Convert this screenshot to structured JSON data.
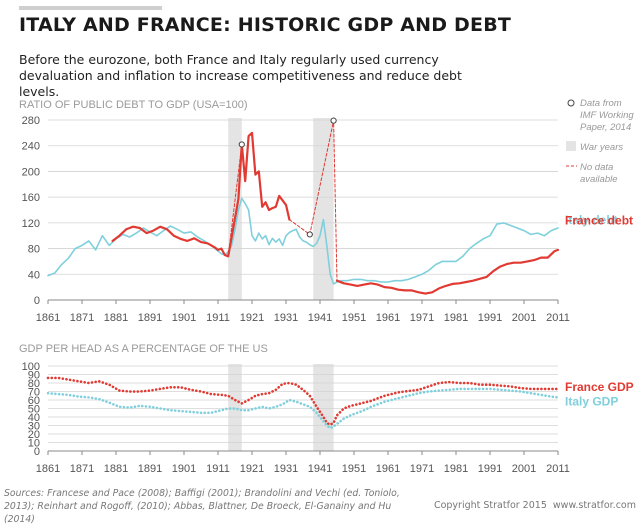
{
  "header": {
    "title": "ITALY AND FRANCE: HISTORIC GDP AND DEBT",
    "subtitle": "Before the eurozone, both France and Italy regularly used currency devaluation and inflation to increase competitiveness and reduce debt levels."
  },
  "footer": {
    "sources": "Sources: Francese and Pace (2008); Baffigi (2001); Brandolini and Vechi (ed. Toniolo, 2013); Reinhart and Rogoff, (2010); Abbas, Blattner, De Broeck, El-Ganainy and Hu (2014)",
    "copyright": "Copyright Stratfor 2015",
    "website": "www.stratfor.com"
  },
  "colors": {
    "france": "#e03a33",
    "italy": "#7fd0dc",
    "war": "#e4e4e4",
    "grid": "#d3d3d3",
    "axis": "#8a8a8a"
  },
  "chart_data": [
    {
      "type": "line",
      "title": "RATIO OF PUBLIC DEBT TO GDP (USA=100)",
      "xlim": [
        1861,
        2011
      ],
      "ylim": [
        0,
        280
      ],
      "x_ticks": [
        1861,
        1871,
        1881,
        1891,
        1901,
        1911,
        1921,
        1931,
        1941,
        1951,
        1961,
        1971,
        1981,
        1991,
        2001,
        2011
      ],
      "y_ticks": [
        0,
        40,
        80,
        120,
        160,
        200,
        240,
        280
      ],
      "grid": true,
      "war_years": [
        [
          1914,
          1918
        ],
        [
          1939,
          1945
        ]
      ],
      "legend": {
        "imf_marker": "Data from IMF Working Paper, 2014",
        "war": "War years",
        "no_data": "No data available"
      },
      "series": [
        {
          "name": "Italy debt",
          "x": [
            1861,
            1863,
            1865,
            1867,
            1869,
            1871,
            1873,
            1875,
            1877,
            1879,
            1881,
            1883,
            1885,
            1887,
            1889,
            1891,
            1893,
            1895,
            1897,
            1899,
            1901,
            1903,
            1905,
            1907,
            1909,
            1911,
            1912,
            1913,
            1914,
            1915,
            1916,
            1917,
            1918,
            1919,
            1920,
            1921,
            1922,
            1923,
            1924,
            1925,
            1926,
            1927,
            1928,
            1929,
            1930,
            1931,
            1932,
            1933,
            1934,
            1935,
            1936,
            1937,
            1938,
            1939,
            1940,
            1941,
            1942,
            1943,
            1944,
            1945,
            1946,
            1947,
            1948,
            1949,
            1951,
            1953,
            1955,
            1957,
            1959,
            1961,
            1963,
            1965,
            1967,
            1969,
            1971,
            1973,
            1975,
            1977,
            1979,
            1981,
            1983,
            1985,
            1987,
            1989,
            1991,
            1993,
            1995,
            1997,
            1999,
            2001,
            2003,
            2005,
            2007,
            2009,
            2011
          ],
          "y": [
            38,
            42,
            55,
            65,
            80,
            85,
            92,
            78,
            100,
            85,
            95,
            102,
            98,
            104,
            112,
            106,
            100,
            108,
            115,
            110,
            104,
            106,
            98,
            92,
            85,
            76,
            72,
            70,
            75,
            85,
            110,
            140,
            158,
            150,
            140,
            100,
            92,
            104,
            95,
            100,
            86,
            96,
            90,
            95,
            85,
            100,
            105,
            108,
            110,
            98,
            92,
            90,
            86,
            83,
            88,
            100,
            125,
            85,
            40,
            25,
            28,
            30,
            30,
            30,
            32,
            32,
            30,
            30,
            28,
            28,
            30,
            30,
            32,
            36,
            40,
            46,
            55,
            60,
            60,
            60,
            68,
            80,
            88,
            95,
            100,
            118,
            120,
            116,
            112,
            108,
            102,
            104,
            100,
            108,
            112
          ],
          "label_year": 2011
        },
        {
          "name": "France debt",
          "x": [
            1880,
            1882,
            1884,
            1886,
            1888,
            1890,
            1892,
            1894,
            1896,
            1898,
            1900,
            1902,
            1904,
            1906,
            1908,
            1910,
            1911,
            1912,
            1913,
            1914,
            1917,
            1918,
            1919,
            1920,
            1921,
            1922,
            1923,
            1924,
            1925,
            1926,
            1927,
            1928,
            1929,
            1930,
            1931,
            1932
          ],
          "y": [
            92,
            100,
            110,
            114,
            112,
            104,
            108,
            114,
            110,
            100,
            95,
            92,
            96,
            90,
            88,
            82,
            78,
            80,
            70,
            68,
            157,
            242,
            185,
            255,
            260,
            195,
            200,
            145,
            152,
            140,
            143,
            145,
            162,
            155,
            148,
            125
          ],
          "label_year": 2011
        },
        {
          "name": "France debt",
          "x": [
            1946,
            1948,
            1950,
            1952,
            1954,
            1956,
            1958,
            1960,
            1962,
            1964,
            1966,
            1968,
            1970,
            1972,
            1974,
            1976,
            1978,
            1980,
            1982,
            1984,
            1986,
            1988,
            1990,
            1992,
            1994,
            1996,
            1998,
            2000,
            2002,
            2004,
            2006,
            2008,
            2010,
            2011
          ],
          "y": [
            30,
            26,
            24,
            22,
            24,
            26,
            24,
            20,
            19,
            16,
            15,
            15,
            12,
            10,
            12,
            18,
            22,
            25,
            26,
            28,
            30,
            33,
            36,
            45,
            52,
            56,
            58,
            58,
            60,
            62,
            66,
            66,
            76,
            78
          ]
        },
        {
          "name": "No data available",
          "dashed": true,
          "x": [
            1914,
            1918,
            1919
          ],
          "y": [
            68,
            242,
            185
          ]
        },
        {
          "name": "No data available",
          "dashed": true,
          "x": [
            1932,
            1938,
            1945,
            1946
          ],
          "y": [
            125,
            102,
            279,
            30
          ]
        },
        {
          "name": "Data from IMF Working Paper, 2014",
          "markers": true,
          "x": [
            1918,
            1938,
            1945
          ],
          "y": [
            242,
            102,
            279
          ]
        }
      ]
    },
    {
      "type": "line",
      "title": "GDP PER HEAD AS A PERCENTAGE OF THE US",
      "xlim": [
        1861,
        2011
      ],
      "ylim": [
        0,
        100
      ],
      "x_ticks": [
        1861,
        1871,
        1881,
        1891,
        1901,
        1911,
        1921,
        1931,
        1941,
        1951,
        1961,
        1971,
        1981,
        1991,
        2001,
        2011
      ],
      "y_ticks": [
        0,
        10,
        20,
        30,
        40,
        50,
        60,
        70,
        80,
        90,
        100
      ],
      "grid": true,
      "war_years": [
        [
          1914,
          1918
        ],
        [
          1939,
          1945
        ]
      ],
      "series": [
        {
          "name": "France GDP",
          "dotted": true,
          "x": [
            1861,
            1864,
            1867,
            1870,
            1873,
            1876,
            1879,
            1882,
            1885,
            1888,
            1891,
            1894,
            1897,
            1900,
            1903,
            1906,
            1909,
            1912,
            1914,
            1916,
            1918,
            1920,
            1922,
            1924,
            1926,
            1928,
            1930,
            1932,
            1934,
            1936,
            1938,
            1940,
            1942,
            1943,
            1944,
            1945,
            1946,
            1948,
            1950,
            1952,
            1954,
            1956,
            1958,
            1960,
            1962,
            1964,
            1966,
            1968,
            1970,
            1973,
            1976,
            1979,
            1982,
            1985,
            1988,
            1991,
            1994,
            1997,
            2000,
            2003,
            2006,
            2009,
            2011
          ],
          "y": [
            86,
            86,
            84,
            82,
            80,
            82,
            78,
            71,
            70,
            70,
            71,
            73,
            75,
            75,
            72,
            70,
            67,
            66,
            65,
            60,
            56,
            60,
            65,
            67,
            68,
            72,
            79,
            80,
            78,
            72,
            65,
            52,
            40,
            33,
            31,
            33,
            42,
            50,
            53,
            55,
            57,
            59,
            62,
            65,
            67,
            69,
            70,
            71,
            72,
            76,
            80,
            81,
            80,
            80,
            78,
            78,
            77,
            76,
            74,
            73,
            73,
            73,
            73
          ],
          "label_year": 2011
        },
        {
          "name": "Italy GDP",
          "dotted": true,
          "x": [
            1861,
            1864,
            1867,
            1870,
            1873,
            1876,
            1879,
            1882,
            1885,
            1888,
            1891,
            1894,
            1897,
            1900,
            1903,
            1906,
            1909,
            1912,
            1914,
            1916,
            1918,
            1920,
            1922,
            1924,
            1926,
            1928,
            1930,
            1932,
            1934,
            1936,
            1938,
            1940,
            1942,
            1943,
            1944,
            1945,
            1946,
            1948,
            1950,
            1952,
            1954,
            1956,
            1958,
            1960,
            1962,
            1964,
            1966,
            1968,
            1970,
            1973,
            1976,
            1979,
            1982,
            1985,
            1988,
            1991,
            1994,
            1997,
            2000,
            2003,
            2006,
            2009,
            2011
          ],
          "y": [
            68,
            67,
            66,
            64,
            63,
            61,
            57,
            52,
            51,
            53,
            52,
            50,
            48,
            47,
            46,
            45,
            45,
            48,
            50,
            50,
            48,
            48,
            50,
            52,
            50,
            52,
            55,
            60,
            58,
            55,
            52,
            45,
            35,
            30,
            27,
            29,
            32,
            38,
            42,
            45,
            48,
            52,
            55,
            58,
            60,
            62,
            64,
            66,
            68,
            70,
            71,
            72,
            73,
            73,
            73,
            73,
            72,
            71,
            70,
            68,
            66,
            64,
            63
          ],
          "label_year": 2011
        }
      ]
    }
  ]
}
